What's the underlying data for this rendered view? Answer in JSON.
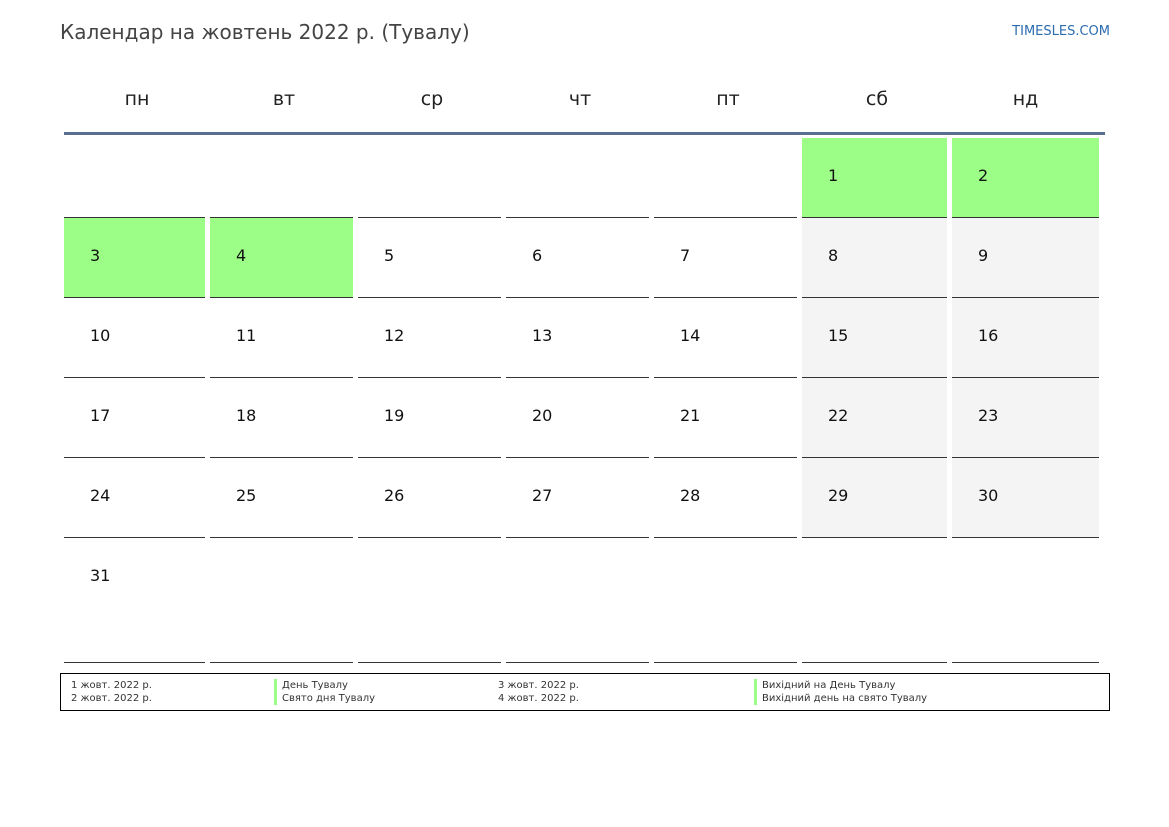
{
  "title": "Календар на жовтень 2022 р. (Тувалу)",
  "site": "TIMESLES.COM",
  "colors": {
    "holiday": "#9cfe86",
    "weekend": "#f4f4f4",
    "header_rule": "#5a6e90",
    "link": "#2b6cb0"
  },
  "weekdays": [
    "пн",
    "вт",
    "ср",
    "чт",
    "пт",
    "сб",
    "нд"
  ],
  "weeks": [
    [
      "",
      "",
      "",
      "",
      "",
      "1",
      "2"
    ],
    [
      "3",
      "4",
      "5",
      "6",
      "7",
      "8",
      "9"
    ],
    [
      "10",
      "11",
      "12",
      "13",
      "14",
      "15",
      "16"
    ],
    [
      "17",
      "18",
      "19",
      "20",
      "21",
      "22",
      "23"
    ],
    [
      "24",
      "25",
      "26",
      "27",
      "28",
      "29",
      "30"
    ],
    [
      "31",
      "",
      "",
      "",
      "",
      "",
      ""
    ]
  ],
  "holiday_days": [
    "1",
    "2",
    "3",
    "4"
  ],
  "legend": [
    {
      "date": "1 жовт. 2022 р.",
      "name": "День Тувалу"
    },
    {
      "date": "2 жовт. 2022 р.",
      "name": "Свято дня Тувалу"
    },
    {
      "date": "3 жовт. 2022 р.",
      "name": "Вихідний на День Тувалу"
    },
    {
      "date": "4 жовт. 2022 р.",
      "name": "Вихідний день на свято Тувалу"
    }
  ]
}
